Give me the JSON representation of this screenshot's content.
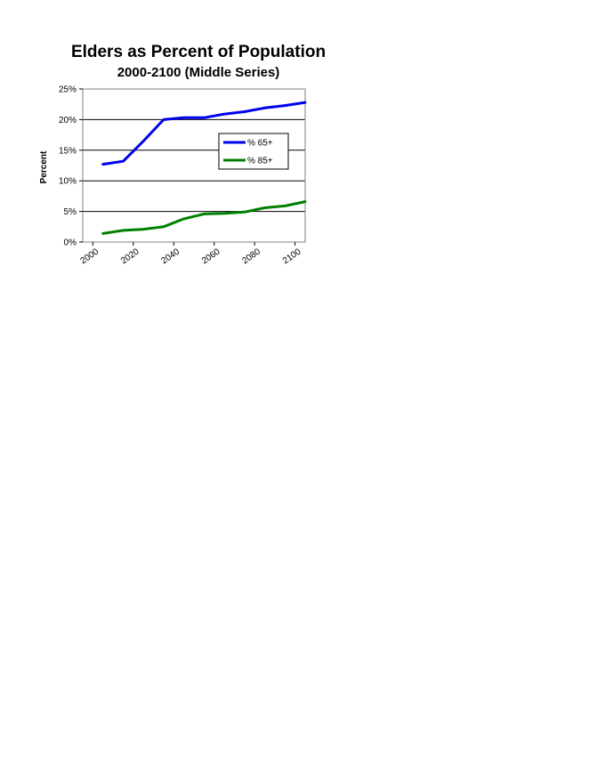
{
  "chart_data": {
    "type": "line",
    "title": "Elders as Percent of Population",
    "subtitle": "2000-2100 (Middle Series)",
    "xlabel": "",
    "ylabel": "Percent",
    "x": [
      2000,
      2010,
      2020,
      2030,
      2040,
      2050,
      2060,
      2070,
      2080,
      2090,
      2100
    ],
    "x_ticks": [
      "2000",
      "2020",
      "2040",
      "2060",
      "2080",
      "2100"
    ],
    "y_ticks": [
      "0%",
      "5%",
      "10%",
      "15%",
      "20%",
      "25%"
    ],
    "ylim": [
      0,
      25
    ],
    "grid": true,
    "legend_position": "right",
    "series": [
      {
        "name": "% 65+",
        "color": "#0000ee",
        "values": [
          12.7,
          13.2,
          16.5,
          20.0,
          20.3,
          20.3,
          20.9,
          21.3,
          21.9,
          22.3,
          22.8
        ]
      },
      {
        "name": "% 85+",
        "color": "#008000",
        "values": [
          1.4,
          1.9,
          2.1,
          2.5,
          3.8,
          4.6,
          4.7,
          4.9,
          5.6,
          5.9,
          6.6
        ]
      }
    ]
  }
}
